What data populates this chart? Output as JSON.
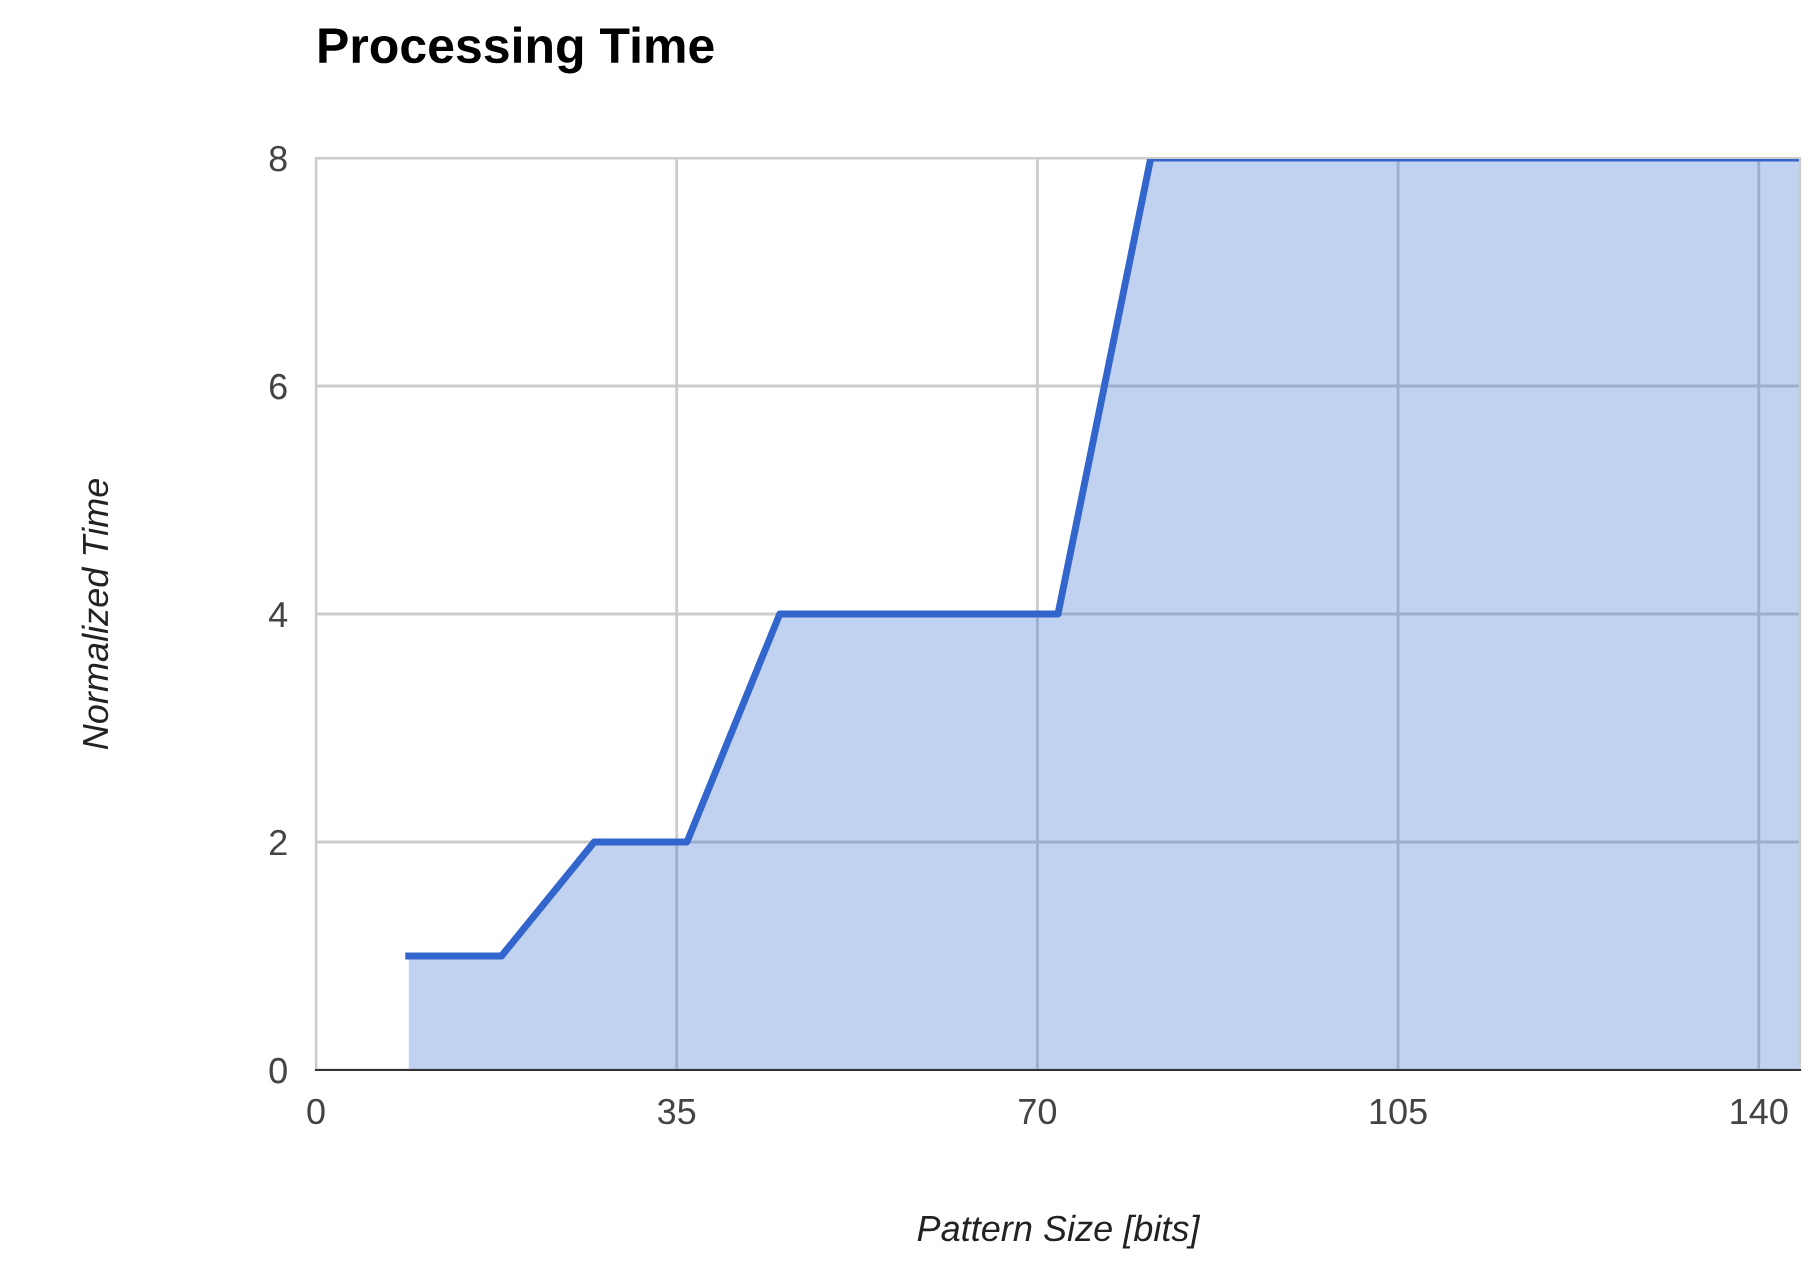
{
  "chart_data": {
    "type": "area",
    "title": "Processing Time",
    "xlabel": "Pattern Size [bits]",
    "ylabel": "Normalized Time",
    "x": [
      9,
      18,
      27,
      36,
      45,
      72,
      81,
      144
    ],
    "series": [
      {
        "color": "#3366cc",
        "values": [
          1,
          1,
          2,
          2,
          4,
          4,
          8,
          8
        ]
      }
    ],
    "xlim": [
      0,
      144
    ],
    "ylim": [
      0,
      8
    ],
    "xticks": [
      0,
      35,
      70,
      105,
      140
    ],
    "yticks": [
      0,
      2,
      4,
      6,
      8
    ],
    "grid": true,
    "legend": false
  }
}
